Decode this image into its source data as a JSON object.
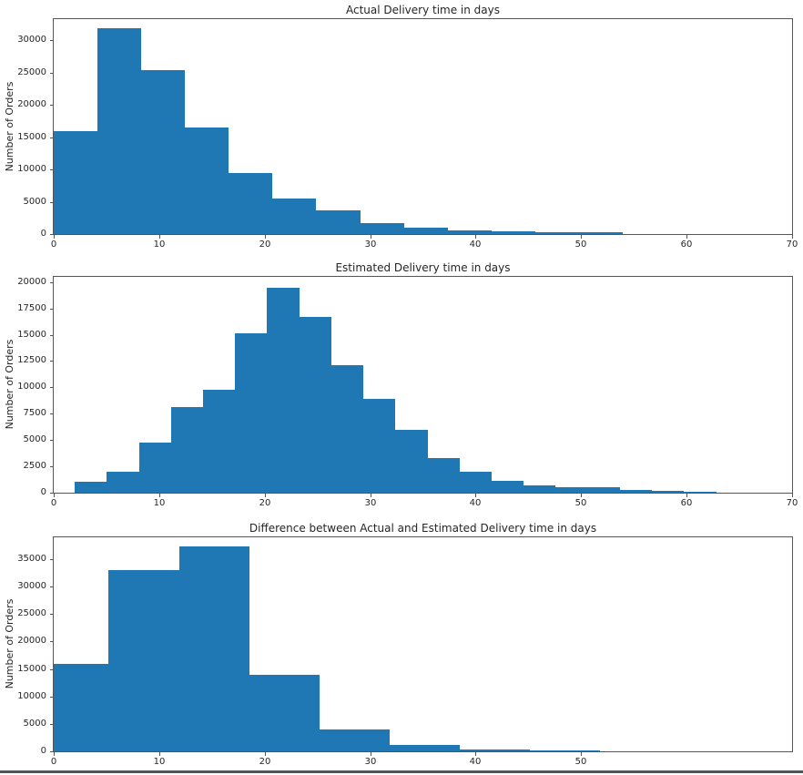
{
  "figure": {
    "ylabel": "Number of Orders",
    "bar_color": "#1f77b4",
    "background_color": "#ffffff",
    "bottom_border_color": "#4e545c"
  },
  "chart_data": [
    {
      "type": "bar",
      "subtype": "histogram",
      "title": "Actual Delivery time in days",
      "ylabel": "Number of Orders",
      "xlabel": "",
      "grid": false,
      "legend": false,
      "xlim": [
        0,
        70
      ],
      "ylim": [
        0,
        33300
      ],
      "x_ticks": [
        0,
        10,
        20,
        30,
        40,
        50,
        60,
        70
      ],
      "y_ticks": [
        0,
        5000,
        10000,
        15000,
        20000,
        25000,
        30000
      ],
      "bin_edges": [
        0,
        4.15,
        8.3,
        12.45,
        16.6,
        20.75,
        24.9,
        29.05,
        33.2,
        37.35,
        41.5,
        45.65,
        49.8,
        53.95
      ],
      "values": [
        15900,
        31900,
        25400,
        16500,
        9400,
        5450,
        3600,
        1650,
        950,
        600,
        480,
        280,
        250
      ]
    },
    {
      "type": "bar",
      "subtype": "histogram",
      "title": "Estimated Delivery time in days",
      "ylabel": "Number of Orders",
      "xlabel": "",
      "grid": false,
      "legend": false,
      "xlim": [
        0,
        70
      ],
      "ylim": [
        0,
        20500
      ],
      "x_ticks": [
        0,
        10,
        20,
        30,
        40,
        50,
        60,
        70
      ],
      "y_ticks": [
        0,
        2500,
        5000,
        7500,
        10000,
        12500,
        15000,
        17500,
        20000
      ],
      "bin_edges": [
        2,
        5.04,
        8.08,
        11.12,
        14.16,
        17.2,
        20.24,
        23.28,
        26.32,
        29.36,
        32.4,
        35.44,
        38.48,
        41.52,
        44.56,
        47.6,
        50.64,
        53.68,
        56.72,
        59.76,
        62.8
      ],
      "values": [
        1000,
        2000,
        4800,
        8100,
        9800,
        15100,
        19500,
        16700,
        12100,
        8900,
        6000,
        3250,
        2000,
        1150,
        650,
        500,
        480,
        260,
        130,
        110
      ]
    },
    {
      "type": "bar",
      "subtype": "histogram",
      "title": "Difference between Actual and Estimated Delivery time in days",
      "ylabel": "Number of Orders",
      "xlabel": "",
      "grid": false,
      "legend": false,
      "xlim": [
        0,
        70
      ],
      "ylim": [
        0,
        39000
      ],
      "x_ticks": [
        0,
        10,
        20,
        30,
        40,
        50
      ],
      "y_ticks": [
        0,
        5000,
        10000,
        15000,
        20000,
        25000,
        30000,
        35000
      ],
      "bin_edges": [
        0,
        5.2,
        11.9,
        18.55,
        25.2,
        31.85,
        38.5,
        45.15,
        51.8
      ],
      "values": [
        16000,
        33000,
        37300,
        14000,
        3900,
        1200,
        400,
        150
      ]
    }
  ]
}
